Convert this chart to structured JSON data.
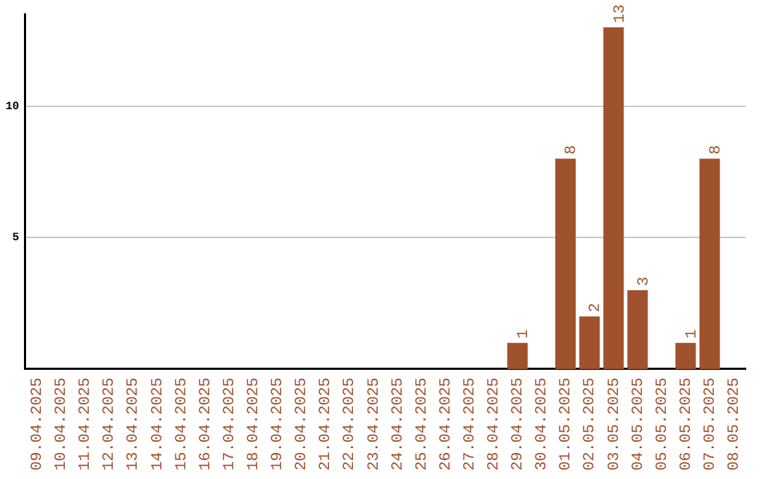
{
  "chart_data": {
    "type": "bar",
    "categories": [
      "09.04.2025",
      "10.04.2025",
      "11.04.2025",
      "12.04.2025",
      "13.04.2025",
      "14.04.2025",
      "15.04.2025",
      "16.04.2025",
      "17.04.2025",
      "18.04.2025",
      "19.04.2025",
      "20.04.2025",
      "21.04.2025",
      "22.04.2025",
      "23.04.2025",
      "24.04.2025",
      "25.04.2025",
      "26.04.2025",
      "27.04.2025",
      "28.04.2025",
      "29.04.2025",
      "30.04.2025",
      "01.05.2025",
      "02.05.2025",
      "03.05.2025",
      "04.05.2025",
      "05.05.2025",
      "06.05.2025",
      "07.05.2025",
      "08.05.2025"
    ],
    "values": [
      0,
      0,
      0,
      0,
      0,
      0,
      0,
      0,
      0,
      0,
      0,
      0,
      0,
      0,
      0,
      0,
      0,
      0,
      0,
      0,
      1,
      0,
      8,
      2,
      13,
      3,
      0,
      1,
      8,
      0
    ],
    "value_labels": [
      null,
      null,
      null,
      null,
      null,
      null,
      null,
      null,
      null,
      null,
      null,
      null,
      null,
      null,
      null,
      null,
      null,
      null,
      null,
      null,
      "1",
      null,
      "8",
      "2",
      "13",
      "3",
      null,
      "1",
      "8",
      null
    ],
    "color": "#a0522d",
    "ylim": [
      0,
      13.5
    ],
    "yticks": [
      5,
      10
    ],
    "grid": "y",
    "legend": false
  }
}
